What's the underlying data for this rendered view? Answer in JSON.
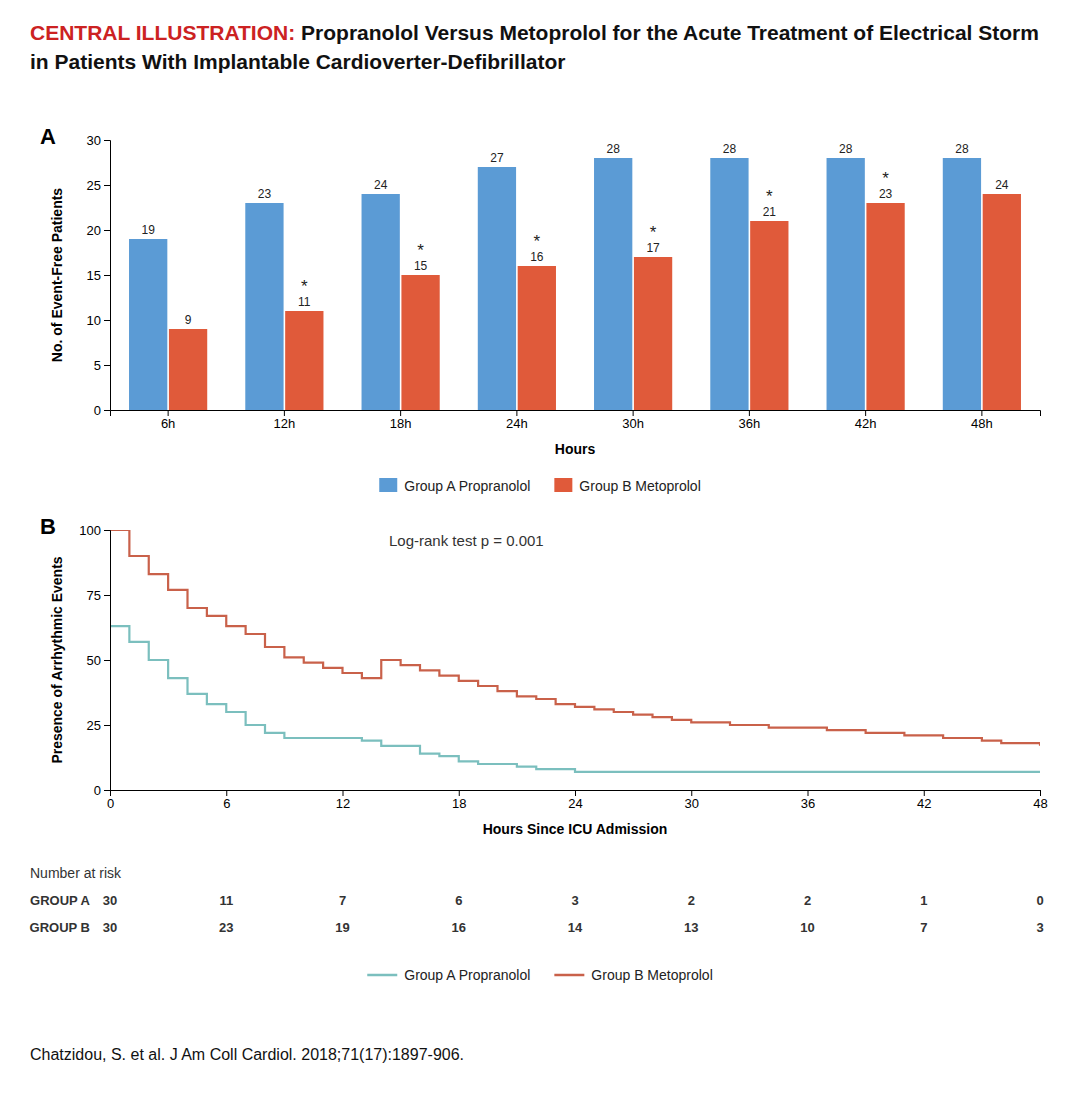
{
  "title_prefix": "CENTRAL ILLUSTRATION:",
  "title": "Propranolol Versus Metoprolol for the Acute Treatment of Electrical Storm in Patients With Implantable Cardioverter-Defibrillator",
  "citation": "Chatzidou, S. et al. J Am Coll Cardiol. 2018;71(17):1897-906.",
  "chart_data": [
    {
      "type": "bar",
      "panel": "A",
      "categories": [
        "6h",
        "12h",
        "18h",
        "24h",
        "30h",
        "36h",
        "42h",
        "48h"
      ],
      "series": [
        {
          "name": "Group A Propranolol",
          "color": "#5b9bd5",
          "values": [
            19,
            23,
            24,
            27,
            28,
            28,
            28,
            28
          ]
        },
        {
          "name": "Group B Metoprolol",
          "color": "#e05a3a",
          "values": [
            9,
            11,
            15,
            16,
            17,
            21,
            23,
            24
          ]
        }
      ],
      "x_label": "Hours",
      "y_label": "No. of Event-Free Patients",
      "ylim": [
        0,
        30
      ],
      "yticks": [
        0,
        5,
        10,
        15,
        20,
        25,
        30
      ],
      "data_labels": true,
      "grid": false,
      "legend": "bottom",
      "annotations": [
        {
          "text": "*",
          "category": "12h",
          "series": "Group B Metoprolol"
        },
        {
          "text": "*",
          "category": "18h",
          "series": "Group B Metoprolol"
        },
        {
          "text": "*",
          "category": "24h",
          "series": "Group B Metoprolol"
        },
        {
          "text": "*",
          "category": "30h",
          "series": "Group B Metoprolol"
        },
        {
          "text": "*",
          "category": "36h",
          "series": "Group B Metoprolol"
        },
        {
          "text": "*",
          "category": "42h",
          "series": "Group B Metoprolol"
        }
      ]
    },
    {
      "type": "line",
      "line_style": "step",
      "panel": "B",
      "series": [
        {
          "name": "Group A Propranolol",
          "color": "#7bbfbe",
          "x": [
            0,
            1,
            2,
            3,
            4,
            5,
            6,
            7,
            8,
            9,
            10,
            11,
            12,
            13,
            14,
            15,
            16,
            17,
            18,
            19,
            20,
            21,
            22,
            23,
            24,
            48
          ],
          "values": [
            63,
            57,
            50,
            43,
            37,
            33,
            30,
            25,
            22,
            20,
            20,
            20,
            20,
            19,
            17,
            17,
            14,
            13,
            11,
            10,
            10,
            9,
            8,
            8,
            7,
            7
          ]
        },
        {
          "name": "Group B Metoprolol",
          "color": "#c9614a",
          "x": [
            0,
            1,
            2,
            3,
            4,
            5,
            6,
            7,
            8,
            9,
            10,
            11,
            12,
            13,
            14,
            15,
            16,
            17,
            18,
            19,
            20,
            21,
            22,
            23,
            24,
            25,
            26,
            27,
            28,
            29,
            30,
            31,
            32,
            33,
            34,
            35,
            36,
            37,
            38,
            39,
            40,
            41,
            42,
            43,
            44,
            45,
            46,
            47,
            48
          ],
          "values": [
            100,
            90,
            83,
            77,
            70,
            67,
            63,
            60,
            55,
            51,
            49,
            47,
            45,
            43,
            50,
            48,
            46,
            44,
            42,
            40,
            38,
            36,
            35,
            33,
            32,
            31,
            30,
            29,
            28,
            27,
            26,
            26,
            25,
            25,
            24,
            24,
            24,
            23,
            23,
            22,
            22,
            21,
            21,
            20,
            20,
            19,
            18,
            18,
            17
          ]
        }
      ],
      "x_label": "Hours Since ICU Admission",
      "y_label": "Presence of Arrhythmic Events",
      "xlim": [
        0,
        48
      ],
      "ylim": [
        0,
        100
      ],
      "xticks": [
        0,
        6,
        12,
        18,
        24,
        30,
        36,
        42,
        48
      ],
      "yticks": [
        0,
        25,
        50,
        75,
        100
      ],
      "annotation": "Log-rank test p = 0.001",
      "grid": false,
      "legend": "bottom",
      "risk_table": {
        "header": "Number at risk",
        "x": [
          0,
          6,
          12,
          18,
          24,
          30,
          36,
          42,
          48
        ],
        "rows": [
          {
            "name": "GROUP A",
            "values": [
              30,
              11,
              7,
              6,
              3,
              2,
              2,
              1,
              0
            ]
          },
          {
            "name": "GROUP B",
            "values": [
              30,
              23,
              19,
              16,
              14,
              13,
              10,
              7,
              3
            ]
          }
        ]
      }
    }
  ]
}
